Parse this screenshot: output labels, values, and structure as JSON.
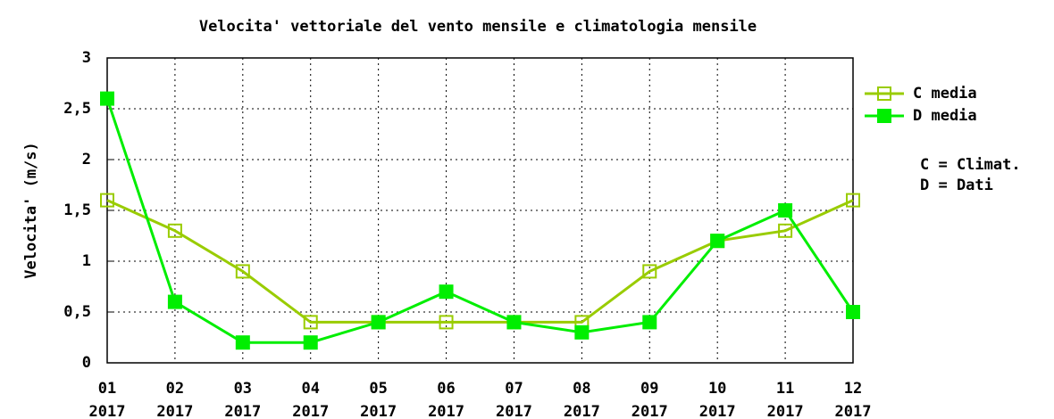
{
  "chart_data": {
    "type": "line",
    "title": "Velocita' vettoriale del vento mensile e climatologia mensile",
    "y_label": "Velocita' (m/s)",
    "categories": [
      "01 2017",
      "02 2017",
      "03 2017",
      "04 2017",
      "05 2017",
      "06 2017",
      "07 2017",
      "08 2017",
      "09 2017",
      "10 2017",
      "11 2017",
      "12 2017"
    ],
    "series": [
      {
        "name": "C media",
        "color": "#99cc00",
        "marker": "open-square",
        "values": [
          1.6,
          1.3,
          0.9,
          0.4,
          0.4,
          0.4,
          0.4,
          0.4,
          0.9,
          1.2,
          1.3,
          1.6
        ]
      },
      {
        "name": "D media",
        "color": "#00ee00",
        "marker": "filled-square",
        "values": [
          2.6,
          0.6,
          0.2,
          0.2,
          0.4,
          0.7,
          0.4,
          0.3,
          0.4,
          1.2,
          1.5,
          0.5
        ]
      }
    ],
    "annotations": [
      "C = Climat.",
      "D = Dati"
    ],
    "ylim": [
      0,
      3
    ],
    "yticks": [
      0,
      {
        "value": 0.5,
        "label": "0,5"
      },
      1,
      {
        "value": 1.5,
        "label": "1,5"
      },
      2,
      {
        "value": 2.5,
        "label": "2,5"
      },
      3
    ],
    "grid": true,
    "legend": "right"
  }
}
